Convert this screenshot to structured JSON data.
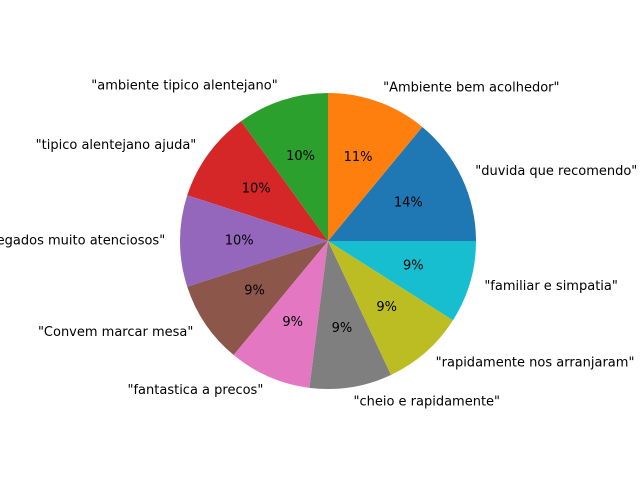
{
  "chart_data": {
    "type": "pie",
    "start_angle_deg": 0,
    "direction": "counterclockwise",
    "categories": [
      "\"duvida que recomendo\"",
      "\"Ambiente bem acolhedor\"",
      "\"ambiente tipico alentejano\"",
      "\"tipico alentejano ajuda\"",
      "\"empregados muito atenciosos\"",
      "\"Convem marcar mesa\"",
      "\"fantastica a precos\"",
      "\"cheio e rapidamente\"",
      "\"rapidamente nos arranjaram\"",
      "\"familiar e simpatia\""
    ],
    "values": [
      14,
      11,
      10,
      10,
      10,
      9,
      9,
      9,
      9,
      9
    ],
    "percent_labels": [
      "14%",
      "11%",
      "10%",
      "10%",
      "10%",
      "9%",
      "9%",
      "9%",
      "9%",
      "9%"
    ],
    "colors": [
      "#1f77b4",
      "#ff7f0e",
      "#2ca02c",
      "#d62728",
      "#9467bd",
      "#8c564b",
      "#e377c2",
      "#7f7f7f",
      "#bcbd22",
      "#17becf"
    ]
  }
}
